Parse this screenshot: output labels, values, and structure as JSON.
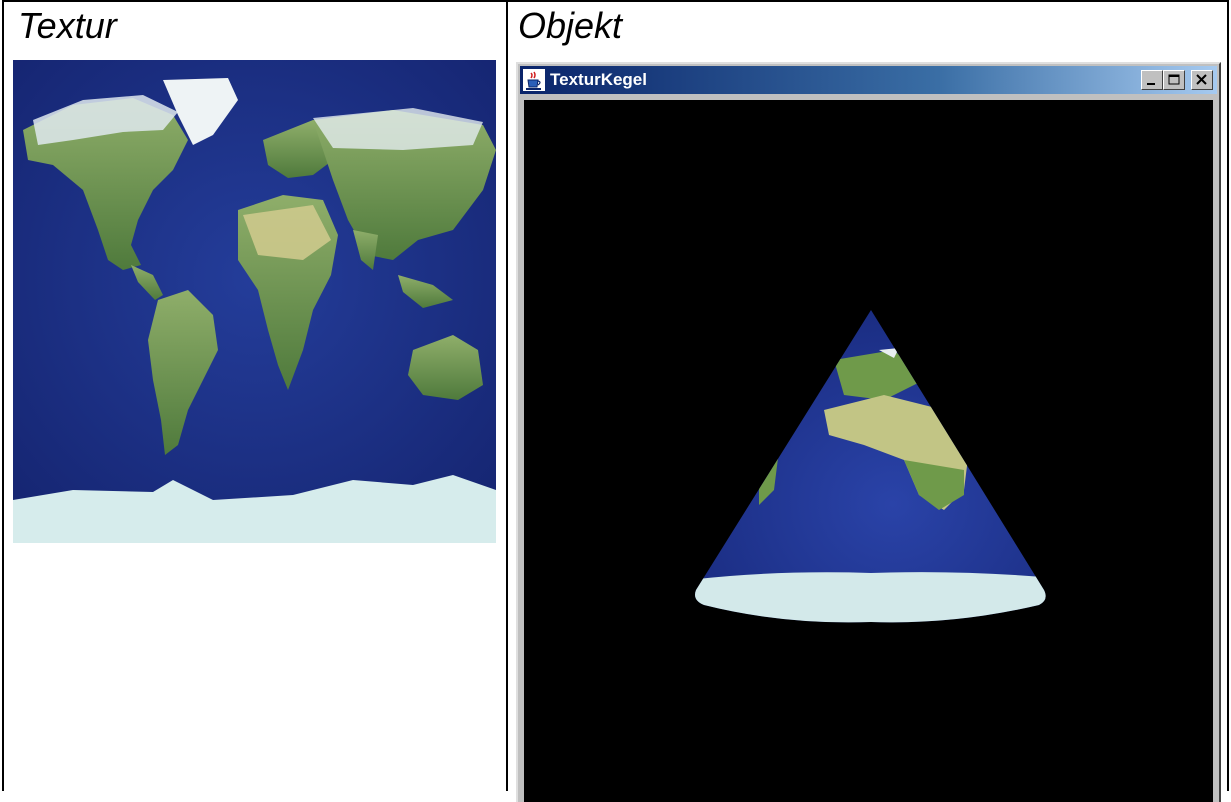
{
  "headings": {
    "left": "Textur",
    "right": "Objekt"
  },
  "window": {
    "title": "TexturKegel",
    "icon": "java-cup-icon",
    "controls": [
      "minimize-icon",
      "maximize-icon",
      "close-icon"
    ]
  },
  "colors": {
    "ocean": "#1b2f8a",
    "ice": "#cfe6e6",
    "land": "#6f9a4a",
    "desert": "#c8c98a",
    "titlebar": "#0a246a",
    "canvas": "#000000"
  }
}
